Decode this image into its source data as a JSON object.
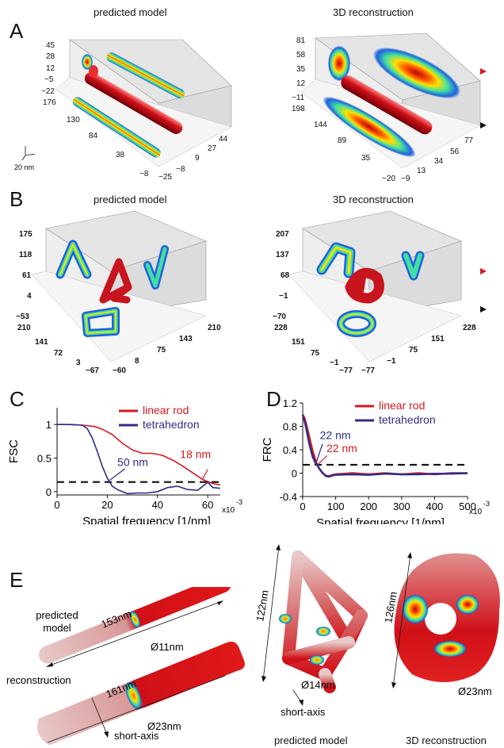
{
  "panels": {
    "A": {
      "letter": "A",
      "left_title": "predicted model",
      "right_title": "3D reconstruction",
      "left_axes": {
        "z_ticks": [
          "45",
          "28",
          "12",
          "−5",
          "−22"
        ],
        "y_ticks": [
          "176",
          "130",
          "84",
          "38",
          "−8"
        ],
        "x_ticks": [
          "−25",
          "−8",
          "9",
          "27",
          "44"
        ],
        "scale": "20 nm"
      },
      "right_axes": {
        "z_ticks": [
          "81",
          "58",
          "35",
          "12",
          "−11"
        ],
        "y_ticks": [
          "198",
          "144",
          "89",
          "35",
          "−20"
        ],
        "x_ticks": [
          "−9",
          "13",
          "34",
          "56",
          "77"
        ]
      }
    },
    "B": {
      "letter": "B",
      "left_title": "predicted model",
      "right_title": "3D reconstruction",
      "left_axes": {
        "z_ticks": [
          "175",
          "118",
          "61",
          "4",
          "−53"
        ],
        "y_ticks": [
          "210",
          "141",
          "72",
          "3",
          "−67"
        ],
        "x_ticks": [
          "−60",
          "8",
          "75",
          "143",
          "210"
        ]
      },
      "right_axes": {
        "z_ticks": [
          "207",
          "137",
          "68",
          "−1",
          "−70"
        ],
        "y_ticks": [
          "228",
          "151",
          "75",
          "−1",
          "−77"
        ],
        "x_ticks": [
          "−77",
          "−1",
          "75",
          "151",
          "228"
        ]
      }
    },
    "C": {
      "letter": "C",
      "ylabel": "FSC",
      "xlabel": "Spatial frequency [1/nm]",
      "x_exp": "x10",
      "x_exp_sup": "-3",
      "annot_blue": "50 nm",
      "annot_red": "18 nm"
    },
    "D": {
      "letter": "D",
      "ylabel": "FRC",
      "xlabel": "Spatial frequency [1/nm]",
      "x_exp": "x10",
      "x_exp_sup": "-3",
      "annot_blue": "22 nm",
      "annot_red": "22 nm"
    },
    "E": {
      "letter": "E",
      "rod_top_length": "153nm",
      "rod_top_diam": "Ø11nm",
      "rod_top_label": "predicted\nmodel",
      "rod_bot_length": "161nm",
      "rod_bot_diam": "Ø23nm",
      "rod_bot_label": "reconstruction",
      "short_axis": "short-axis",
      "tetra_pred_height": "122nm",
      "tetra_pred_diam": "Ø14nm",
      "tetra_pred_short_axis": "short-axis",
      "tetra_recon_height": "126nm",
      "tetra_recon_diam": "Ø23nm",
      "caption_pred": "predicted model",
      "caption_recon": "3D reconstruction"
    }
  },
  "colors": {
    "red": "#d7191c",
    "blue": "#2c2c8c",
    "rod": "#c8141e"
  },
  "chart_data": [
    {
      "type": "line",
      "id": "C",
      "ylabel": "FSC",
      "xlabel": "Spatial frequency [1/nm]",
      "xlim": [
        0,
        65
      ],
      "ylim": [
        -0.05,
        1.25
      ],
      "x_ticks": [
        0,
        20,
        40,
        60
      ],
      "y_ticks": [
        0,
        0.5,
        1
      ],
      "threshold": 0.143,
      "series": [
        {
          "name": "linear rod",
          "color": "#d7191c",
          "x": [
            0,
            5,
            10,
            15,
            18,
            22,
            26,
            30,
            34,
            38,
            42,
            46,
            50,
            54,
            58,
            62,
            65
          ],
          "y": [
            1.0,
            1.0,
            0.99,
            0.97,
            0.93,
            0.85,
            0.72,
            0.62,
            0.57,
            0.57,
            0.54,
            0.47,
            0.38,
            0.28,
            0.18,
            0.12,
            0.1
          ]
        },
        {
          "name": "tetrahedron",
          "color": "#2c2c8c",
          "x": [
            0,
            5,
            10,
            12,
            14,
            16,
            18,
            20,
            22,
            24,
            26,
            28,
            32,
            36,
            40,
            44,
            48,
            52,
            56,
            60,
            62,
            65
          ],
          "y": [
            1.0,
            1.0,
            0.99,
            0.94,
            0.8,
            0.6,
            0.38,
            0.2,
            0.08,
            0.03,
            0.0,
            -0.03,
            -0.02,
            -0.02,
            0.0,
            0.06,
            0.08,
            0.03,
            0.02,
            0.14,
            0.06,
            0.05
          ]
        }
      ],
      "annotations": [
        {
          "text": "50 nm",
          "x": 20,
          "y": 0.14
        },
        {
          "text": "18 nm",
          "x": 58,
          "y": 0.16
        }
      ]
    },
    {
      "type": "line",
      "id": "D",
      "ylabel": "FRC",
      "xlabel": "Spatial frequency [1/nm]",
      "xlim": [
        0,
        500
      ],
      "ylim": [
        -0.4,
        1.2
      ],
      "x_ticks": [
        0,
        100,
        200,
        300,
        400,
        500
      ],
      "y_ticks": [
        -0.4,
        0,
        0.4,
        0.8,
        1.2
      ],
      "threshold": 0.143,
      "series": [
        {
          "name": "linear rod",
          "color": "#d7191c",
          "x": [
            0,
            5,
            10,
            20,
            30,
            40,
            45,
            50,
            60,
            70,
            80,
            90,
            100,
            150,
            200,
            250,
            300,
            350,
            400,
            450,
            500
          ],
          "y": [
            1.0,
            0.95,
            0.85,
            0.62,
            0.38,
            0.2,
            0.14,
            0.08,
            0.0,
            -0.04,
            -0.05,
            -0.03,
            -0.02,
            0.0,
            -0.02,
            0.0,
            -0.02,
            0.0,
            -0.02,
            0.0,
            0.0
          ]
        },
        {
          "name": "tetrahedron",
          "color": "#2c2c8c",
          "x": [
            0,
            5,
            10,
            20,
            30,
            40,
            45,
            50,
            60,
            70,
            80,
            90,
            100,
            150,
            200,
            250,
            300,
            350,
            400,
            450,
            500
          ],
          "y": [
            1.0,
            0.9,
            0.78,
            0.5,
            0.28,
            0.16,
            0.13,
            0.08,
            0.01,
            -0.05,
            -0.06,
            -0.04,
            -0.03,
            -0.02,
            -0.03,
            -0.01,
            -0.02,
            -0.02,
            -0.01,
            -0.01,
            0.0
          ]
        }
      ],
      "annotations": [
        {
          "text": "22 nm",
          "x": 45,
          "y": 0.14
        },
        {
          "text": "22 nm",
          "x": 45,
          "y": 0.14
        }
      ]
    }
  ]
}
